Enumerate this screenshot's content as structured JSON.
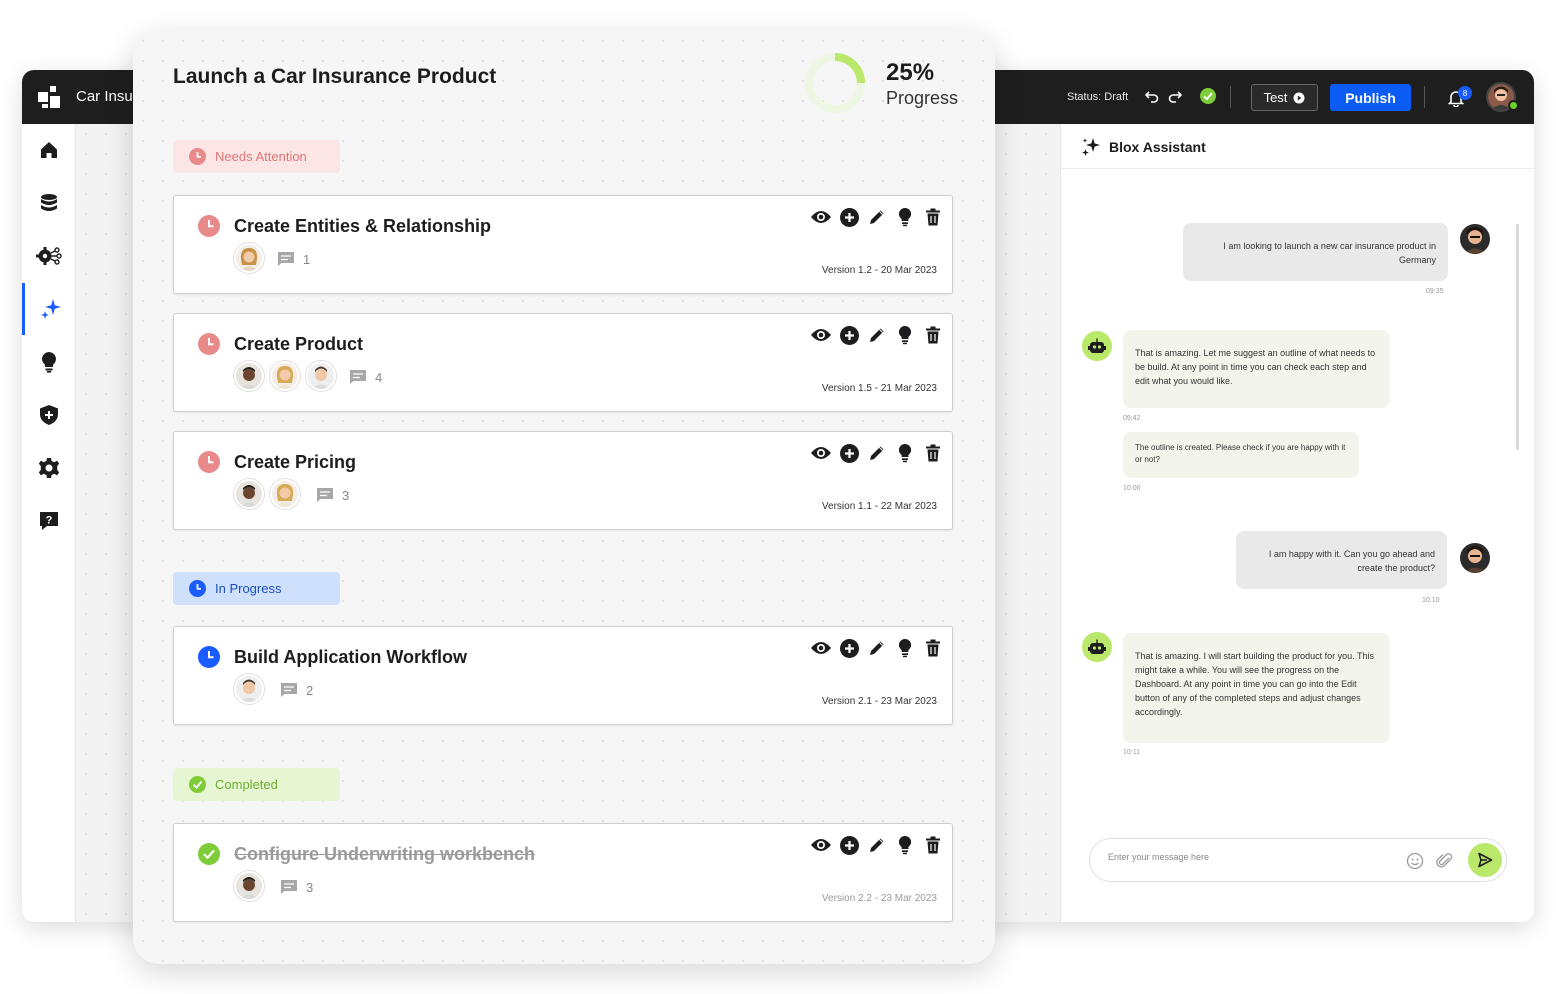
{
  "app": {
    "title": "Car Insu",
    "status": "Status: Draft",
    "test_label": "Test",
    "publish_label": "Publish",
    "notification_count": "8"
  },
  "sidebar": {
    "items": [
      "home-icon",
      "database-icon",
      "settings-network-icon",
      "sparkle-icon",
      "lightbulb-icon",
      "shield-plus-icon",
      "gear-icon",
      "help-icon"
    ],
    "active": "sparkle-icon"
  },
  "modal": {
    "title": "Launch a Car Insurance Product",
    "progress_value": "25%",
    "progress_fraction": 0.25,
    "progress_label": "Progress"
  },
  "sections": {
    "needs_attention": "Needs Attention",
    "in_progress": "In Progress",
    "completed": "Completed"
  },
  "tasks": [
    {
      "title": "Create Entities & Relationship",
      "comments": "1",
      "version": "Version 1.2 - 20 Mar 2023",
      "status": "needs-attention"
    },
    {
      "title": "Create Product",
      "comments": "4",
      "version": "Version 1.5 - 21 Mar 2023",
      "status": "needs-attention"
    },
    {
      "title": "Create Pricing",
      "comments": "3",
      "version": "Version 1.1 - 22 Mar 2023",
      "status": "needs-attention"
    },
    {
      "title": "Build Application Workflow",
      "comments": "2",
      "version": "Version 2.1 - 23 Mar 2023",
      "status": "in-progress"
    },
    {
      "title": "Configure Underwriting workbench",
      "comments": "3",
      "version": "Version 2.2 - 23 Mar 2023",
      "status": "completed"
    }
  ],
  "assistant": {
    "title": "Blox Assistant",
    "messages": [
      {
        "from": "user",
        "text": "I am looking to launch a new car insurance product in Germany",
        "time": "09:35"
      },
      {
        "from": "bot",
        "text": "That is amazing. Let me suggest an outline of what needs to be build. At any point in time you can check each step and edit what you would like.",
        "time": "09:42"
      },
      {
        "from": "bot",
        "text": "The outline is created. Please check if you are happy with it or not?",
        "time": "10:00"
      },
      {
        "from": "user",
        "text": "I am happy with it. Can you go ahead and create the product?",
        "time": "10:10"
      },
      {
        "from": "bot",
        "text": "That is amazing. I will start building the product for you. This might take a while. You will see the progress on the Dashboard. At any point in time you can go into the Edit button of any of the completed steps and adjust changes accordingly.",
        "time": "10:11"
      }
    ],
    "input_placeholder": "Enter your message here"
  },
  "colors": {
    "accent_blue": "#0a5cf5",
    "needs_attention": "#e88a8a",
    "in_progress": "#1a5cff",
    "completed": "#7fcc3a",
    "bot_green": "#b9e86a"
  }
}
